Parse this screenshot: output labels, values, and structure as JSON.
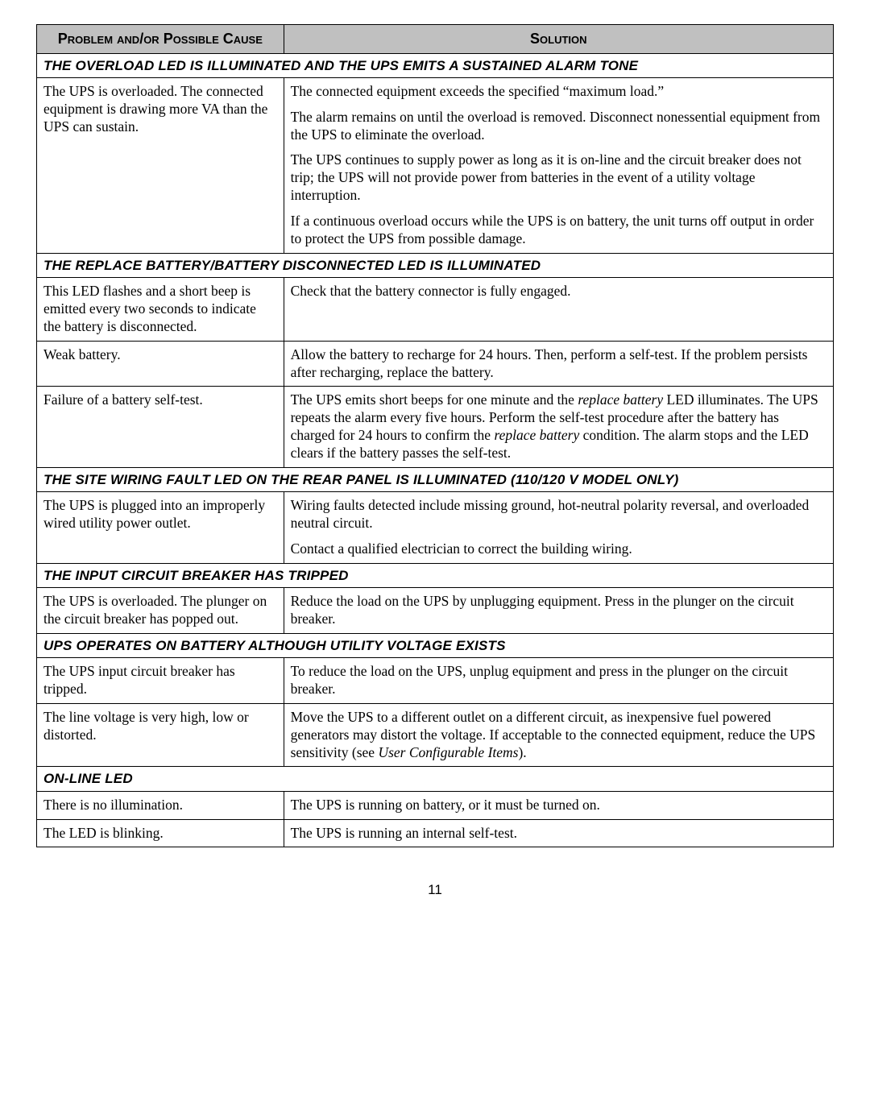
{
  "headers": {
    "problem": "Problem and/or Possible Cause",
    "solution": "Solution"
  },
  "sections": [
    {
      "title_html": "THE OVERLOAD LED IS ILLUMINATED AND THE <span class='ups'>UPS</span> EMITS A SUSTAINED ALARM TONE",
      "rows": [
        {
          "problem": "The UPS is overloaded. The connected equipment is drawing more VA than the UPS can sustain.",
          "solution_html": "<p>The connected equipment exceeds the specified “maximum load.”</p><p>The alarm remains on until the overload is removed. Disconnect nonessential equipment from the UPS to eliminate the overload.</p><p>The UPS continues to supply power as long as it is on-line and the circuit breaker does not trip; the UPS will not provide power from batteries in the event of a utility voltage interruption.</p><p>If a continuous overload occurs while the UPS is on battery, the unit turns off output in order to protect the UPS from possible damage.</p>"
        }
      ]
    },
    {
      "title_html": "THE REPLACE BATTERY/BATTERY DISCONNECTED LED IS ILLUMINATED",
      "rows": [
        {
          "problem": "This LED flashes and a short beep is emitted every two seconds to indicate the battery is disconnected.",
          "solution_html": "<p>Check that the battery connector is fully engaged.</p>"
        },
        {
          "problem": "Weak battery.",
          "solution_html": "<p>Allow the battery to recharge for 24 hours. Then, perform a self-test. If the problem persists after recharging, replace the battery.</p>"
        },
        {
          "problem": "Failure of a battery self-test.",
          "solution_html": "<p>The UPS emits short beeps for one minute and the <span class='italic'>replace battery</span> LED illuminates. The UPS repeats the alarm every five hours. Perform the self-test procedure after the battery has charged for 24 hours to confirm the <span class='italic'>replace battery</span> condition. The alarm stops and the LED clears if the battery passes the self-test.</p>"
        }
      ]
    },
    {
      "title_html": "THE SITE WIRING FAULT LED ON THE REAR PANEL IS ILLUMINATED (110/120 V MODEL ONLY)",
      "rows": [
        {
          "problem": "The UPS is plugged into an improperly wired utility power outlet.",
          "solution_html": "<p>Wiring faults detected include missing ground, hot-neutral polarity reversal, and overloaded neutral circuit.</p><p>Contact a qualified electrician to correct the building wiring.</p>"
        }
      ]
    },
    {
      "title_html": "THE INPUT CIRCUIT BREAKER HAS TRIPPED",
      "rows": [
        {
          "problem": "The UPS is overloaded. The plunger on the circuit breaker has popped out.",
          "solution_html": "<p>Reduce the load on the UPS by unplugging equipment. Press in the plunger on the circuit breaker.</p>"
        }
      ]
    },
    {
      "title_html": "<span class='ups'>UPS</span> OPERATES ON BATTERY ALTHOUGH UTILITY VOLTAGE EXISTS",
      "rows": [
        {
          "problem": "The UPS input circuit breaker has tripped.",
          "solution_html": "<p>To reduce the load on the UPS, unplug equipment and press in the plunger on the circuit breaker.</p>"
        },
        {
          "problem": "The line voltage is very high, low or distorted.",
          "solution_html": "<p>Move the UPS to a different outlet on a different circuit, as inexpensive fuel powered generators may distort the voltage. If acceptable to the connected equipment, reduce the UPS sensitivity (see <span class='italic'>User Configurable Items</span>).</p>"
        }
      ]
    },
    {
      "title_html": "ON-LINE LED",
      "rows": [
        {
          "problem": "There is no illumination.",
          "solution_html": "<p>The UPS is running on battery, or it must be turned on.</p>"
        },
        {
          "problem": "The LED is blinking.",
          "solution_html": "<p>The UPS is running an internal self-test.</p>"
        }
      ]
    }
  ],
  "page_number": "11"
}
